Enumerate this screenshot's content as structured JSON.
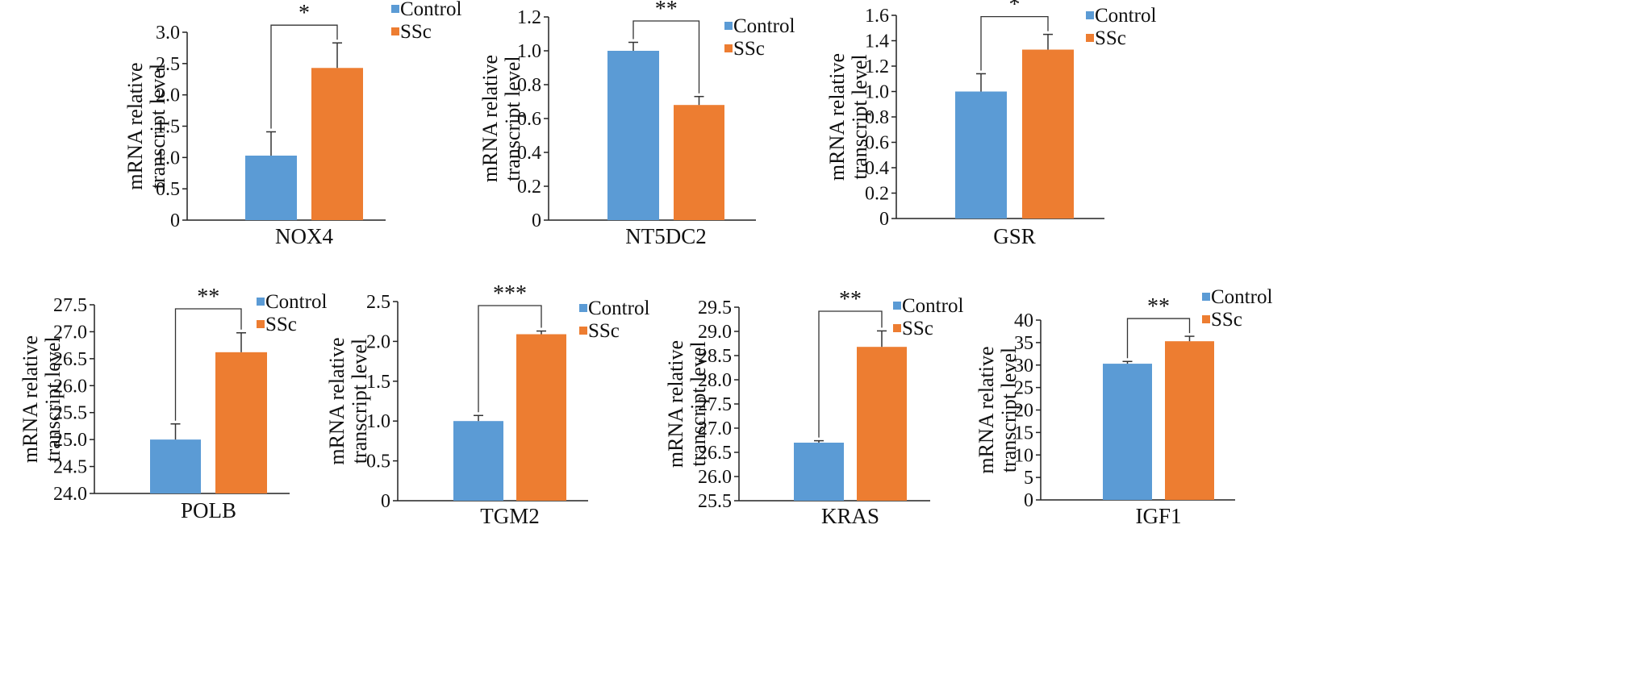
{
  "colors": {
    "control": "#5B9BD5",
    "ssc": "#ED7D31",
    "axis": "#222222"
  },
  "chart_data": [
    {
      "type": "bar",
      "xlabel": "NOX4",
      "ylabel": "mRNA relative transcript level",
      "categories": [
        "Control",
        "SSc"
      ],
      "values": [
        1.03,
        2.43
      ],
      "errors": [
        0.38,
        0.4
      ],
      "ylim": [
        0,
        3.0
      ],
      "ticks": [
        "0",
        "0.5",
        "1.0",
        "1.5",
        "2.0",
        "2.5",
        "3.0"
      ],
      "significance": "*",
      "legend": [
        "Control",
        "SSc"
      ]
    },
    {
      "type": "bar",
      "xlabel": "NT5DC2",
      "ylabel": "mRNA relative transcript level",
      "categories": [
        "Control",
        "SSc"
      ],
      "values": [
        1.0,
        0.68
      ],
      "errors": [
        0.05,
        0.05
      ],
      "ylim": [
        0,
        1.2
      ],
      "ticks": [
        "0",
        "0.2",
        "0.4",
        "0.6",
        "0.8",
        "1.0",
        "1.2"
      ],
      "significance": "**",
      "legend": [
        "Control",
        "SSc"
      ]
    },
    {
      "type": "bar",
      "xlabel": "GSR",
      "ylabel": "mRNA relative transcript level",
      "categories": [
        "Control",
        "SSc"
      ],
      "values": [
        1.0,
        1.33
      ],
      "errors": [
        0.14,
        0.12
      ],
      "ylim": [
        0,
        1.6
      ],
      "ticks": [
        "0",
        "0.2",
        "0.4",
        "0.6",
        "0.8",
        "1.0",
        "1.2",
        "1.4",
        "1.6"
      ],
      "significance": "*",
      "legend": [
        "Control",
        "SSc"
      ]
    },
    {
      "type": "bar",
      "xlabel": "POLB",
      "ylabel": "mRNA relative transcript level",
      "categories": [
        "Control",
        "SSc"
      ],
      "values": [
        25.0,
        26.62
      ],
      "errors": [
        0.29,
        0.36
      ],
      "ylim": [
        24.0,
        27.5
      ],
      "ticks": [
        "24.0",
        "24.5",
        "25.0",
        "25.5",
        "26.0",
        "26.5",
        "27.0",
        "27.5"
      ],
      "significance": "**",
      "legend": [
        "Control",
        "SSc"
      ]
    },
    {
      "type": "bar",
      "xlabel": "TGM2",
      "ylabel": "mRNA relative transcript level",
      "categories": [
        "Control",
        "SSc"
      ],
      "values": [
        1.0,
        2.09
      ],
      "errors": [
        0.07,
        0.04
      ],
      "ylim": [
        0,
        2.5
      ],
      "ticks": [
        "0",
        "0.5",
        "1.0",
        "1.5",
        "2.0",
        "2.5"
      ],
      "significance": "***",
      "legend": [
        "Control",
        "SSc"
      ]
    },
    {
      "type": "bar",
      "xlabel": "KRAS",
      "ylabel": "mRNA relative transcript level",
      "categories": [
        "Control",
        "SSc"
      ],
      "values": [
        26.7,
        28.68
      ],
      "errors": [
        0.04,
        0.33
      ],
      "ylim": [
        25.5,
        29.5
      ],
      "ticks": [
        "25.5",
        "26.0",
        "26.5",
        "27.0",
        "27.5",
        "28.0",
        "28.5",
        "29.0",
        "29.5"
      ],
      "significance": "**",
      "legend": [
        "Control",
        "SSc"
      ]
    },
    {
      "type": "bar",
      "xlabel": "IGF1",
      "ylabel": "mRNA relative transcript level",
      "categories": [
        "Control",
        "SSc"
      ],
      "values": [
        30.3,
        35.3
      ],
      "errors": [
        0.5,
        1.1
      ],
      "ylim": [
        0,
        40
      ],
      "ticks": [
        "0",
        "5",
        "10",
        "15",
        "20",
        "25",
        "30",
        "35",
        "40"
      ],
      "significance": "**",
      "legend": [
        "Control",
        "SSc"
      ]
    }
  ]
}
